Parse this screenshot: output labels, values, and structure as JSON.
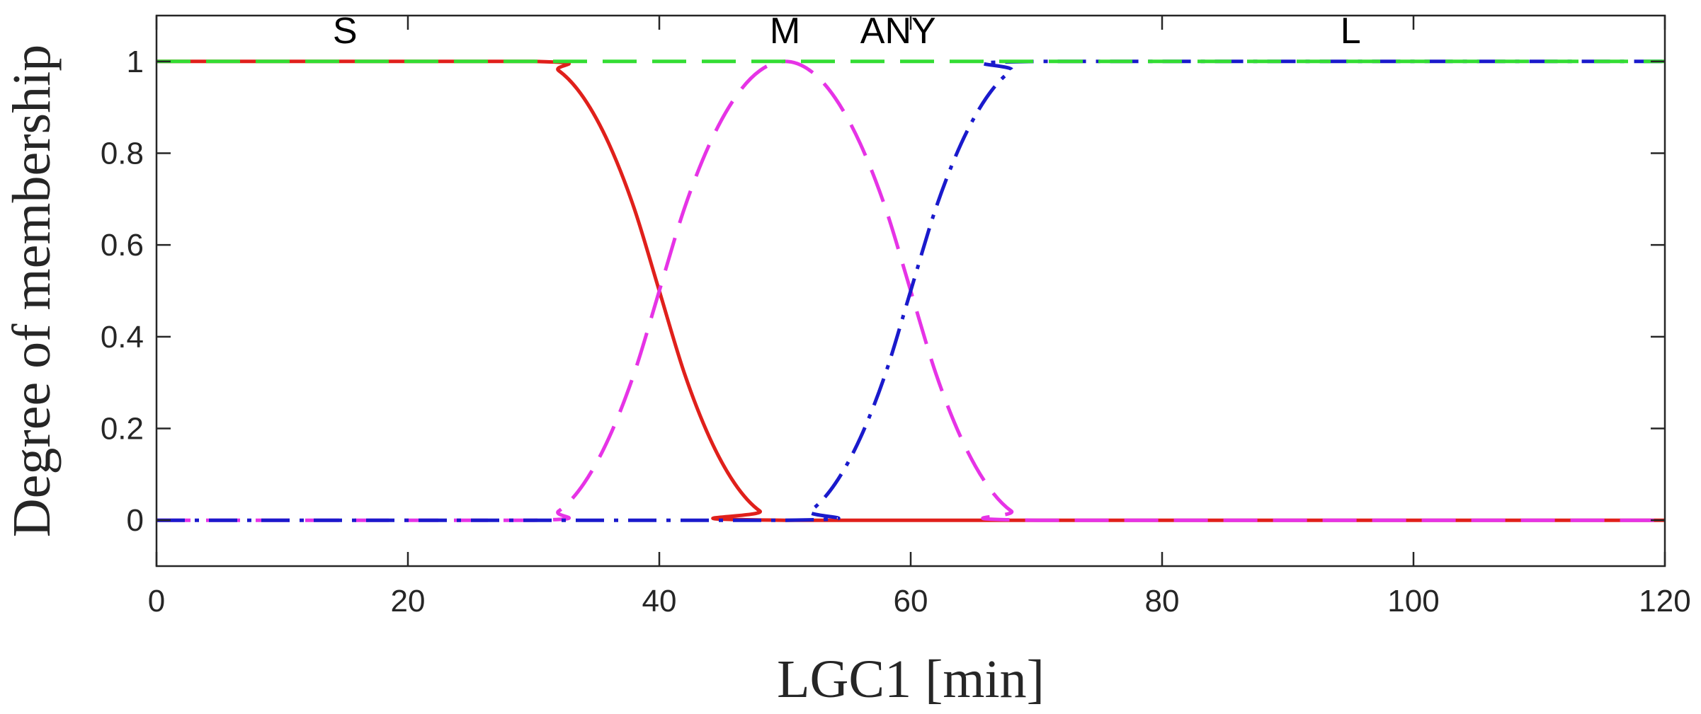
{
  "chart_data": {
    "type": "line",
    "xlabel": "LGC1 [min]",
    "ylabel": "Degree of membership",
    "xlim": [
      0,
      120
    ],
    "ylim": [
      -0.1,
      1.1
    ],
    "xticks": [
      0,
      20,
      40,
      60,
      80,
      100,
      120
    ],
    "yticks": [
      0,
      0.2,
      0.4,
      0.6,
      0.8,
      1
    ],
    "xtick_labels": [
      "0",
      "20",
      "40",
      "60",
      "80",
      "100",
      "120"
    ],
    "ytick_labels": [
      "0",
      "0.2",
      "0.4",
      "0.6",
      "0.8",
      "1"
    ],
    "grid": false,
    "series": [
      {
        "name": "S",
        "color": "#e0201b",
        "line_style": "solid",
        "x": [
          0,
          30,
          32,
          34,
          36,
          38,
          40,
          42,
          44,
          46,
          48,
          50,
          120
        ],
        "y": [
          1,
          1,
          0.98,
          0.92,
          0.82,
          0.68,
          0.5,
          0.32,
          0.18,
          0.08,
          0.02,
          0,
          0
        ]
      },
      {
        "name": "M",
        "color": "#e633e6",
        "line_style": "dashed",
        "x": [
          0,
          30,
          32,
          34,
          36,
          38,
          40,
          42,
          44,
          46,
          48,
          50,
          52,
          54,
          56,
          58,
          60,
          62,
          64,
          66,
          68,
          70,
          120
        ],
        "y": [
          0,
          0,
          0.02,
          0.08,
          0.18,
          0.32,
          0.5,
          0.68,
          0.82,
          0.92,
          0.98,
          1,
          0.98,
          0.92,
          0.82,
          0.68,
          0.5,
          0.32,
          0.18,
          0.08,
          0.02,
          0,
          0
        ]
      },
      {
        "name": "ANY",
        "color": "#33dd33",
        "line_style": "dashed",
        "x": [
          0,
          120
        ],
        "y": [
          1,
          1
        ]
      },
      {
        "name": "L",
        "color": "#1a1acc",
        "line_style": "dashdot",
        "x": [
          0,
          50,
          52,
          54,
          56,
          58,
          60,
          62,
          64,
          66,
          68,
          70,
          120
        ],
        "y": [
          0,
          0,
          0.02,
          0.08,
          0.18,
          0.32,
          0.5,
          0.68,
          0.82,
          0.92,
          0.98,
          1,
          1
        ]
      }
    ],
    "annotations": [
      {
        "text": "S",
        "x": 15,
        "y": 1.04
      },
      {
        "text": "M",
        "x": 50,
        "y": 1.04
      },
      {
        "text": "ANY",
        "x": 59,
        "y": 1.04
      },
      {
        "text": "L",
        "x": 95,
        "y": 1.04
      }
    ]
  }
}
